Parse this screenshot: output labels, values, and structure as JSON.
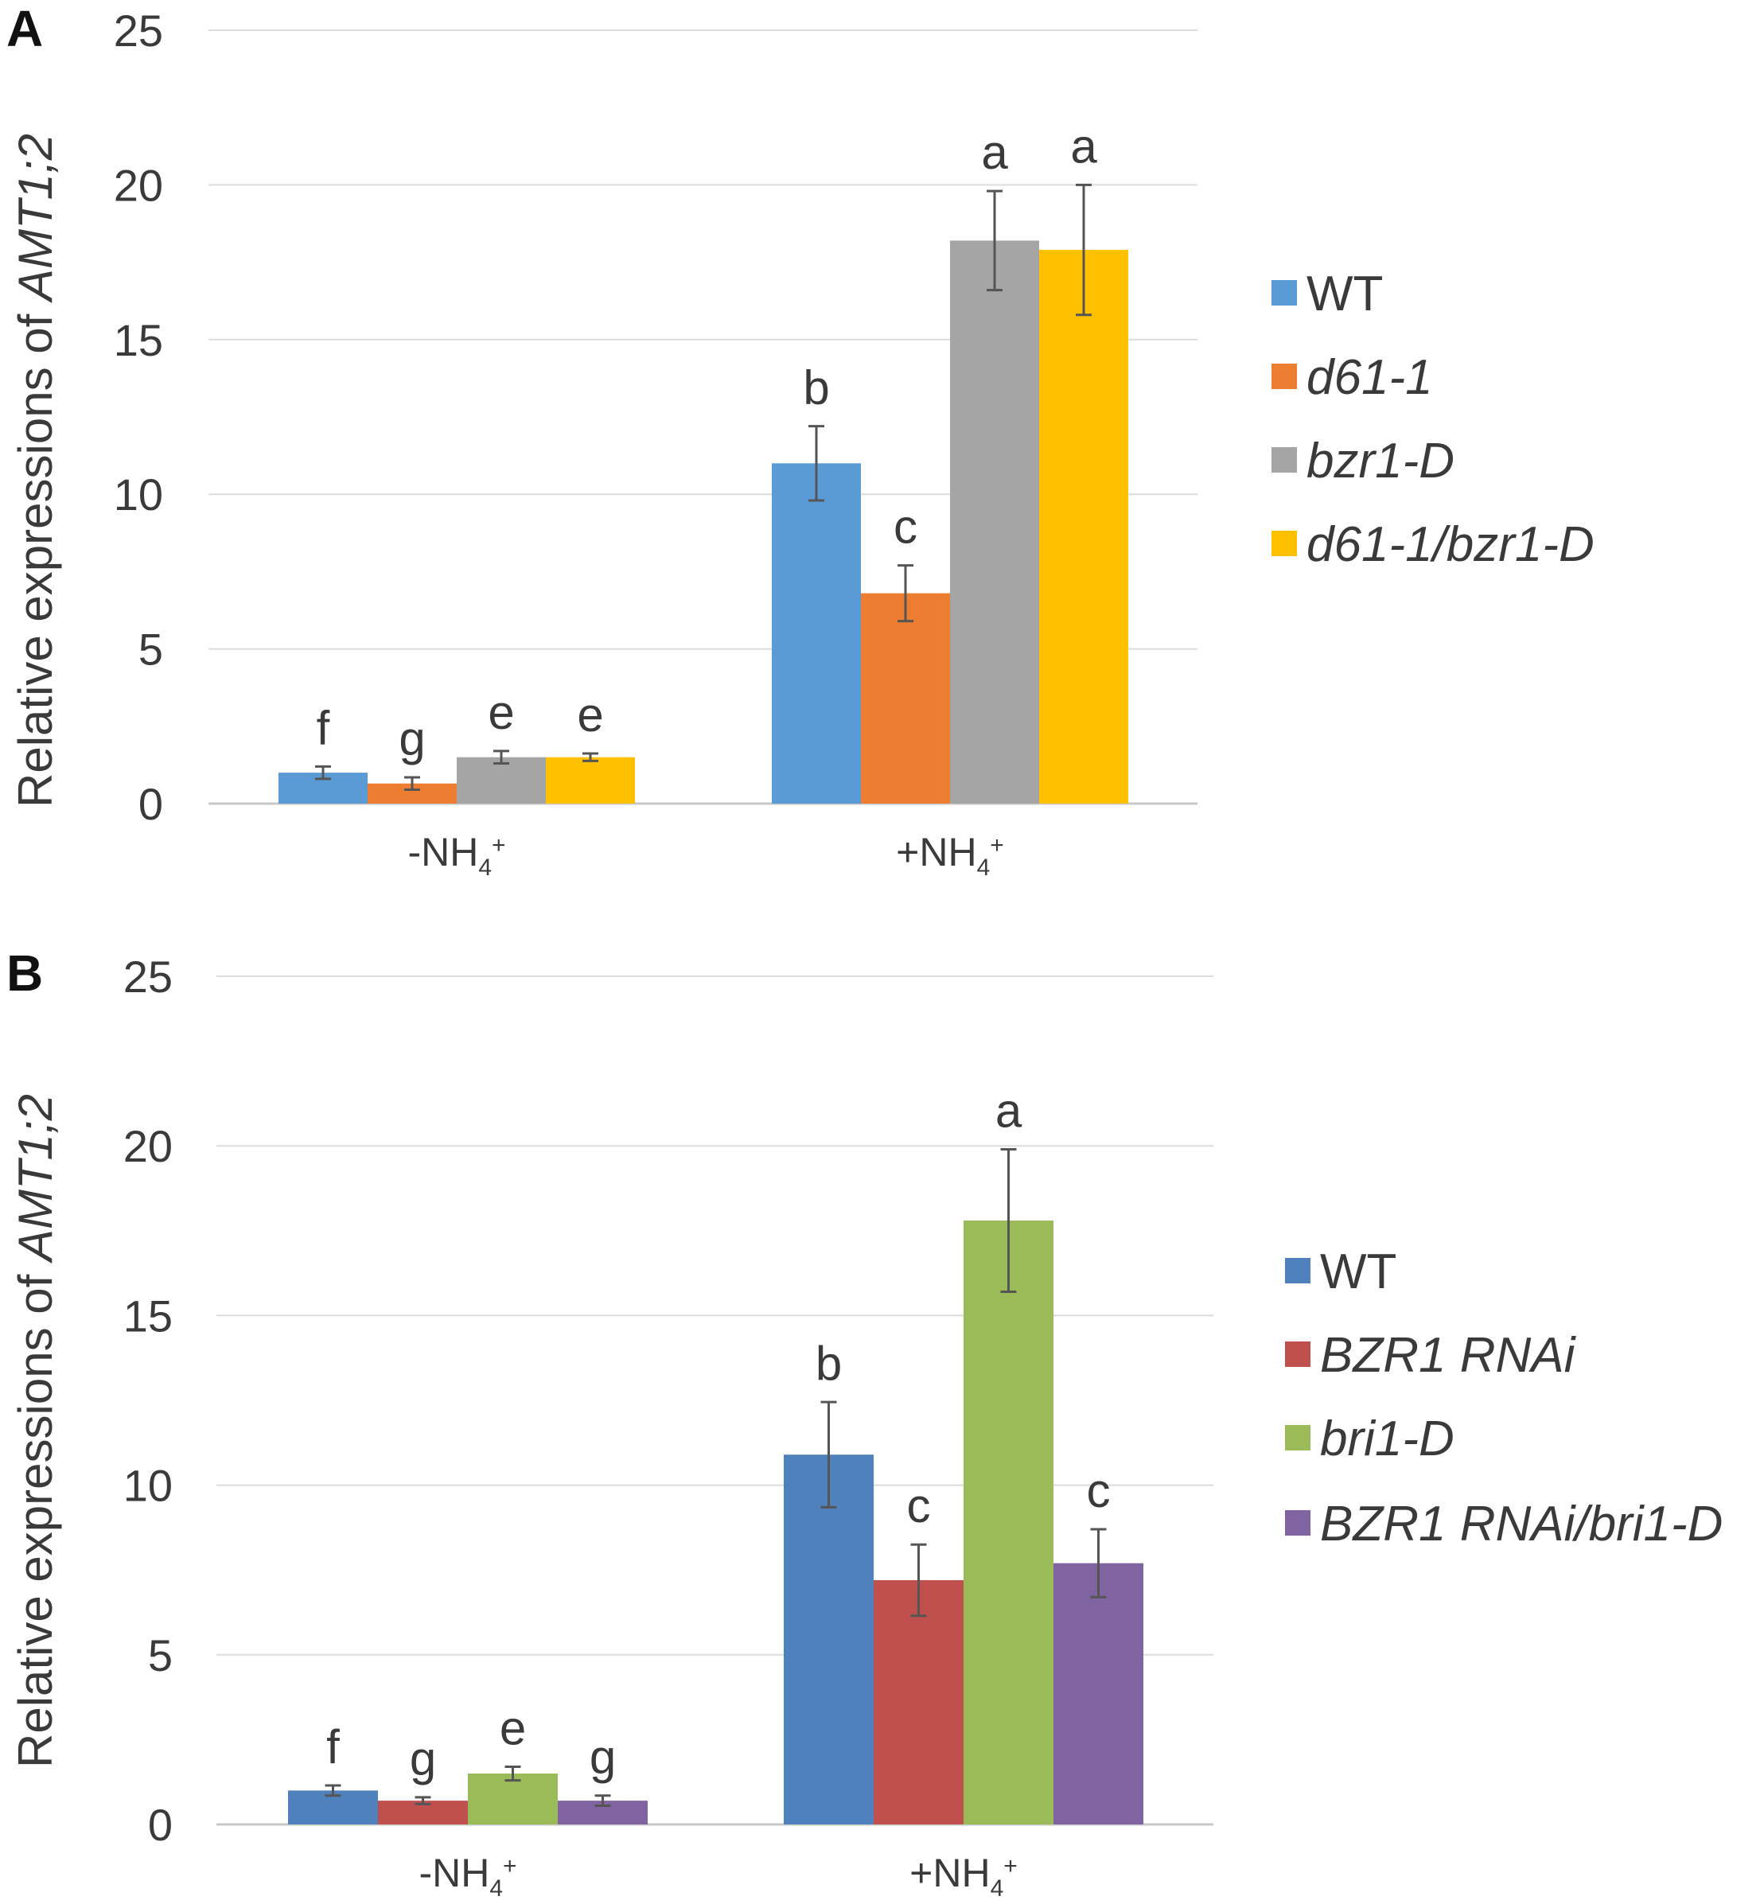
{
  "chart_data": [
    {
      "panel": "A",
      "type": "bar",
      "title": "",
      "ylabel": "Relative expressions of AMT1;2",
      "ylabel_plain": "Relative expressions of ",
      "ylabel_italic": "AMT1;2",
      "ylim": [
        0,
        25
      ],
      "yticks": [
        0,
        5,
        10,
        15,
        20,
        25
      ],
      "grid": true,
      "legend_position": "right",
      "categories": [
        {
          "base": "-NH",
          "sub": "4",
          "sup": "+"
        },
        {
          "base": "+NH",
          "sub": "4",
          "sup": "+"
        }
      ],
      "series": [
        {
          "name": "WT",
          "italic": false,
          "color": "#5b9bd5",
          "values": [
            1.0,
            11.0
          ],
          "errors": [
            0.2,
            1.2
          ],
          "letters": [
            "f",
            "b"
          ]
        },
        {
          "name": "d61-1",
          "italic": true,
          "color": "#ed7d31",
          "values": [
            0.65,
            6.8
          ],
          "errors": [
            0.2,
            0.9
          ],
          "letters": [
            "g",
            "c"
          ]
        },
        {
          "name": "bzr1-D",
          "italic": true,
          "color": "#a5a5a5",
          "values": [
            1.5,
            18.2
          ],
          "errors": [
            0.2,
            1.6
          ],
          "letters": [
            "e",
            "a"
          ]
        },
        {
          "name": "d61-1/bzr1-D",
          "italic": true,
          "color": "#ffc000",
          "values": [
            1.5,
            17.9
          ],
          "errors": [
            0.12,
            2.1
          ],
          "letters": [
            "e",
            "a"
          ]
        }
      ]
    },
    {
      "panel": "B",
      "type": "bar",
      "title": "",
      "ylabel": "Relative expressions of AMT1;2",
      "ylabel_plain": "Relative expressions of ",
      "ylabel_italic": "AMT1;2",
      "ylim": [
        0,
        25
      ],
      "yticks": [
        0,
        5,
        10,
        15,
        20,
        25
      ],
      "grid": true,
      "legend_position": "right",
      "categories": [
        {
          "base": "-NH",
          "sub": "4",
          "sup": "+"
        },
        {
          "base": "+NH",
          "sub": "4",
          "sup": "+"
        }
      ],
      "series": [
        {
          "name": "WT",
          "italic": false,
          "color": "#4f81bd",
          "values": [
            1.0,
            10.9
          ],
          "errors": [
            0.15,
            1.55
          ],
          "letters": [
            "f",
            "b"
          ]
        },
        {
          "name": "BZR1 RNAi",
          "italic": true,
          "color": "#c0504d",
          "values": [
            0.7,
            7.2
          ],
          "errors": [
            0.1,
            1.05
          ],
          "letters": [
            "g",
            "c"
          ]
        },
        {
          "name": "bri1-D",
          "italic": true,
          "color": "#9bbb59",
          "values": [
            1.5,
            17.8
          ],
          "errors": [
            0.2,
            2.1
          ],
          "letters": [
            "e",
            "a"
          ]
        },
        {
          "name": "BZR1 RNAi/bri1-D",
          "italic": true,
          "color": "#8064a2",
          "values": [
            0.7,
            7.7
          ],
          "errors": [
            0.15,
            1.0
          ],
          "letters": [
            "g",
            "c"
          ]
        }
      ]
    }
  ]
}
